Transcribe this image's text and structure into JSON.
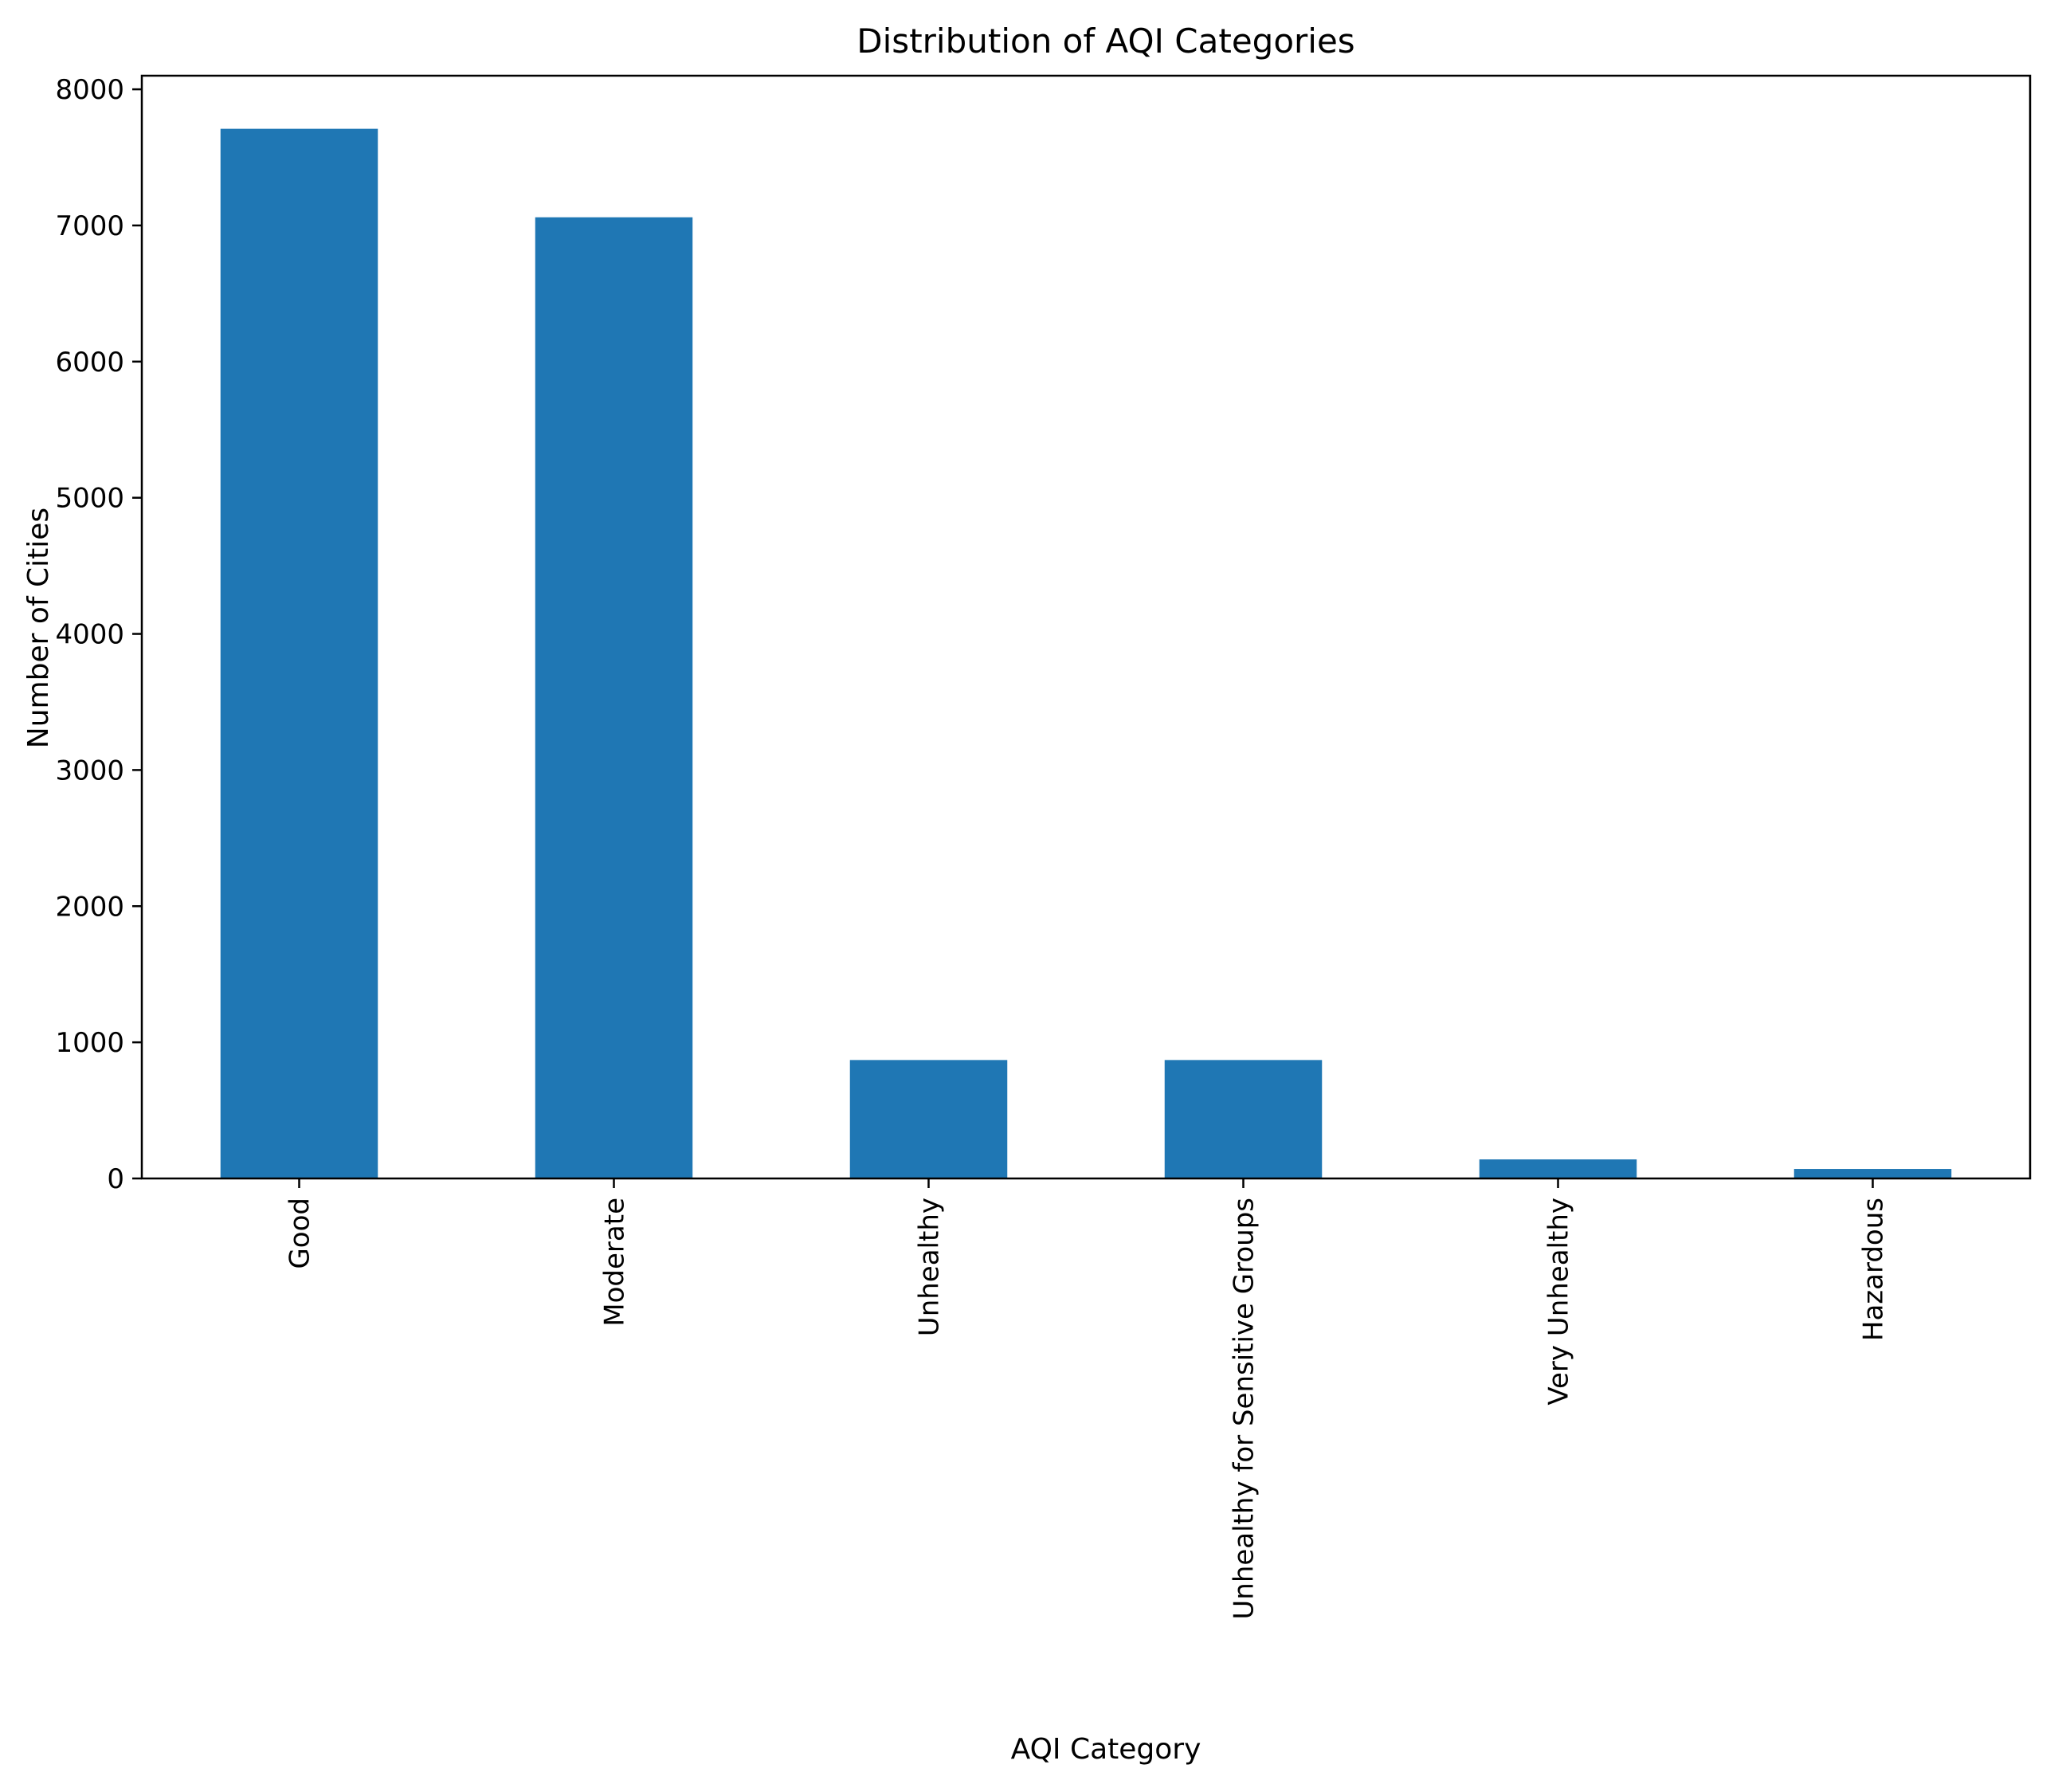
{
  "chart_data": {
    "type": "bar",
    "title": "Distribution of AQI Categories",
    "xlabel": "AQI Category",
    "ylabel": "Number of Cities",
    "categories": [
      "Good",
      "Moderate",
      "Unhealthy",
      "Unhealthy for Sensitive Groups",
      "Very Unhealthy",
      "Hazardous"
    ],
    "values": [
      7710,
      7060,
      870,
      870,
      140,
      70
    ],
    "ylim": [
      0,
      8100
    ],
    "yticks": [
      0,
      1000,
      2000,
      3000,
      4000,
      5000,
      6000,
      7000,
      8000
    ],
    "grid": false,
    "legend": "none",
    "bar_color": "#1f77b4"
  }
}
